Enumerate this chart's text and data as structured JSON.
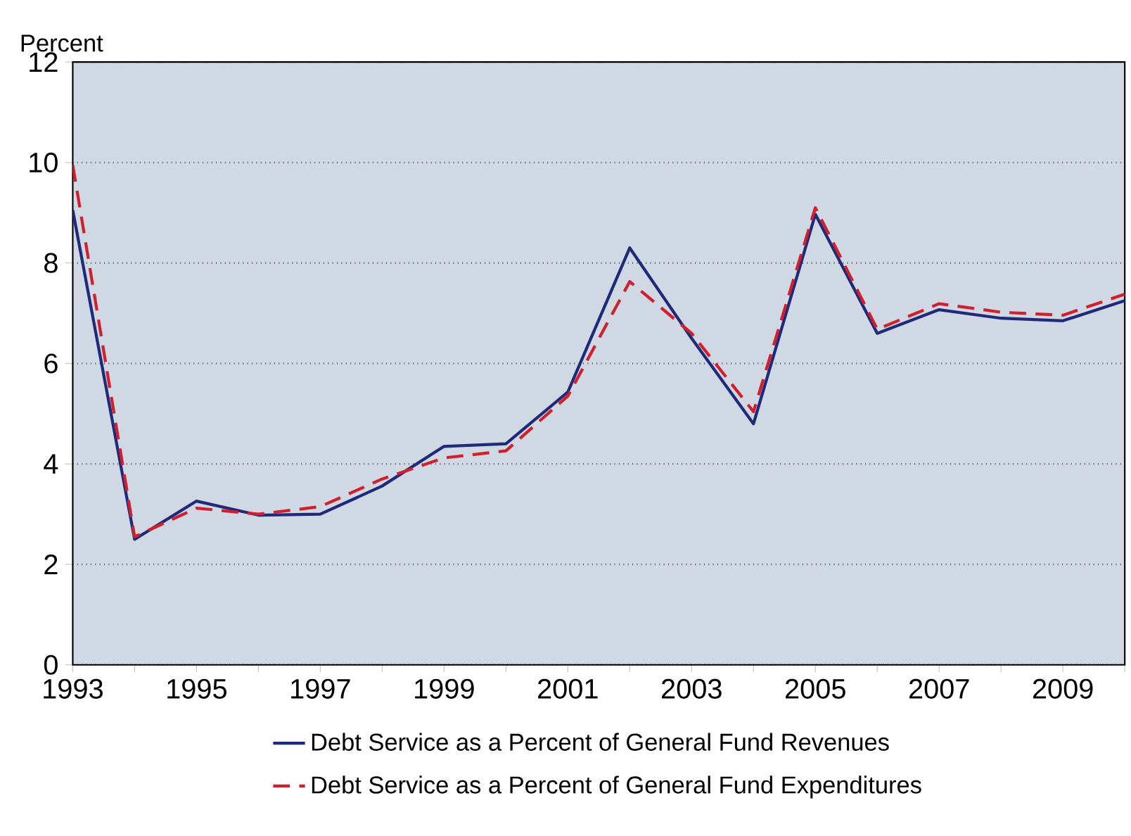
{
  "chart_data": {
    "type": "line",
    "ylabel": "Percent",
    "x": [
      1993,
      1994,
      1995,
      1996,
      1997,
      1998,
      1999,
      2000,
      2001,
      2002,
      2003,
      2004,
      2005,
      2006,
      2007,
      2008,
      2009,
      2010
    ],
    "series": [
      {
        "name": "Debt Service as a Percent of General Fund Revenues",
        "color": "#1f2a7a",
        "line_style": "solid",
        "values": [
          9.05,
          2.5,
          3.26,
          2.98,
          3.0,
          3.56,
          4.35,
          4.4,
          5.43,
          8.3,
          6.5,
          4.8,
          8.97,
          6.6,
          7.07,
          6.9,
          6.85,
          7.25
        ]
      },
      {
        "name": "Debt Service as a Percent of General Fund Expenditures",
        "color": "#d0202e",
        "line_style": "dashed",
        "values": [
          9.95,
          2.55,
          3.12,
          3.0,
          3.15,
          3.7,
          4.12,
          4.26,
          5.35,
          7.63,
          6.6,
          5.04,
          9.1,
          6.68,
          7.19,
          7.02,
          6.96,
          7.38
        ]
      }
    ],
    "xlim": [
      1993,
      2010
    ],
    "ylim": [
      0,
      12
    ],
    "xticks": [
      1993,
      {
        "value": 1994,
        "label": null
      },
      1995,
      {
        "value": 1996,
        "label": null
      },
      1997,
      {
        "value": 1998,
        "label": null
      },
      1999,
      {
        "value": 2000,
        "label": null
      },
      2001,
      {
        "value": 2002,
        "label": null
      },
      2003,
      {
        "value": 2004,
        "label": null
      },
      2005,
      {
        "value": 2006,
        "label": null
      },
      2007,
      {
        "value": 2008,
        "label": null
      },
      2009,
      {
        "value": 2010,
        "label": null
      }
    ],
    "yticks": [
      0,
      2,
      4,
      6,
      8,
      10,
      12
    ],
    "grid": "y",
    "legend": "bottom"
  }
}
